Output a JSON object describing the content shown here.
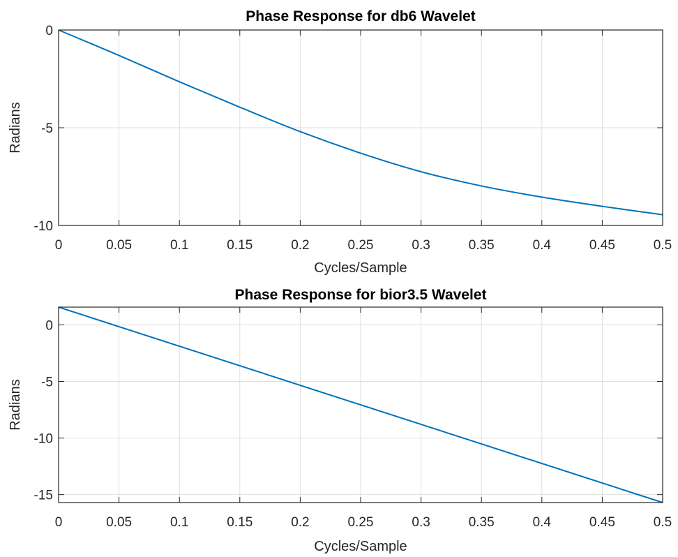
{
  "figure": {
    "line_color": "#0072BD"
  },
  "chart_data": [
    {
      "type": "line",
      "title": "Phase Response for db6 Wavelet",
      "xlabel": "Cycles/Sample",
      "ylabel": "Radians",
      "xlim": [
        0,
        0.5
      ],
      "ylim": [
        -10,
        0
      ],
      "xticks": [
        "0",
        "0.05",
        "0.1",
        "0.15",
        "0.2",
        "0.25",
        "0.3",
        "0.35",
        "0.4",
        "0.45",
        "0.5"
      ],
      "yticks": [
        "-10",
        "-5",
        "0"
      ],
      "grid": true,
      "series": [
        {
          "x": [
            0,
            0.05,
            0.1,
            0.15,
            0.2,
            0.25,
            0.3,
            0.35,
            0.4,
            0.45,
            0.5
          ],
          "y": [
            0,
            -1.3,
            -2.65,
            -3.95,
            -5.2,
            -6.3,
            -7.25,
            -7.98,
            -8.55,
            -9.02,
            -9.45
          ]
        }
      ]
    },
    {
      "type": "line",
      "title": "Phase Response for bior3.5 Wavelet",
      "xlabel": "Cycles/Sample",
      "ylabel": "Radians",
      "xlim": [
        0,
        0.5
      ],
      "ylim": [
        -15.7,
        1.57
      ],
      "xticks": [
        "0",
        "0.05",
        "0.1",
        "0.15",
        "0.2",
        "0.25",
        "0.3",
        "0.35",
        "0.4",
        "0.45",
        "0.5"
      ],
      "yticks": [
        "-15",
        "-10",
        "-5",
        "0"
      ],
      "grid": true,
      "series": [
        {
          "x": [
            0,
            0.5
          ],
          "y": [
            1.57,
            -15.7
          ]
        }
      ]
    }
  ]
}
